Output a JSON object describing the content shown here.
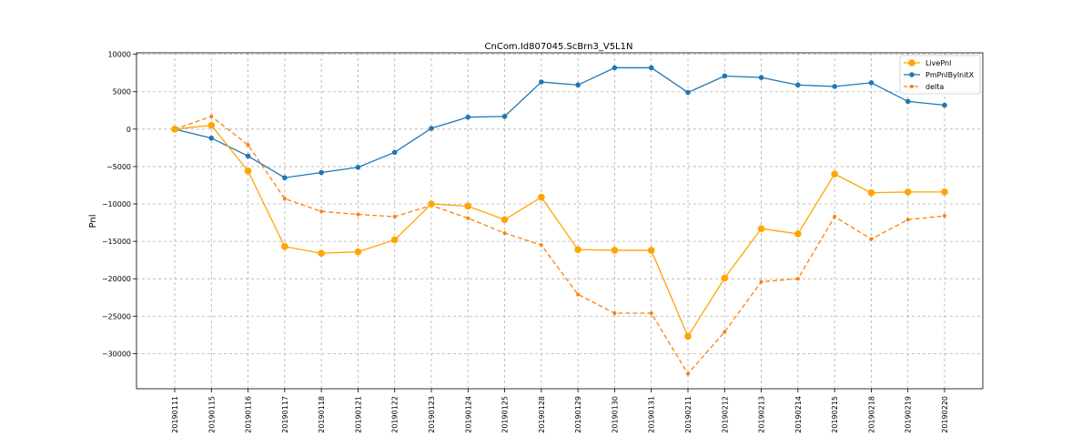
{
  "chart_data": {
    "type": "line",
    "title": "CnCom.Id807045.ScBrn3_V5L1N",
    "xlabel": "",
    "ylabel": "Pnl",
    "categories": [
      "20190111",
      "20190115",
      "20190116",
      "20190117",
      "20190118",
      "20190121",
      "20190122",
      "20190123",
      "20190124",
      "20190125",
      "20190128",
      "20190129",
      "20190130",
      "20190131",
      "20190211",
      "20190212",
      "20190213",
      "20190214",
      "20190215",
      "20190218",
      "20190219",
      "20190220"
    ],
    "ylim": [
      -34700,
      10200
    ],
    "yticks": [
      10000,
      5000,
      0,
      -5000,
      -10000,
      -15000,
      -20000,
      -25000,
      -30000
    ],
    "ytick_labels": [
      "10000",
      "5000",
      "0",
      "−5000",
      "−10000",
      "−15000",
      "−20000",
      "−25000",
      "−30000"
    ],
    "grid": true,
    "legend_position": "top-right",
    "series": [
      {
        "name": "LivePnl",
        "color": "#FFA500",
        "line_style": "solid",
        "marker_size": "large",
        "values": [
          0,
          500,
          -5600,
          -15700,
          -16600,
          -16400,
          -14800,
          -10000,
          -10300,
          -12100,
          -9100,
          -16100,
          -16200,
          -16200,
          -27700,
          -19900,
          -13300,
          -14000,
          -6000,
          -8500,
          -8400,
          -8400
        ]
      },
      {
        "name": "PmPnlByInitX",
        "color": "#1F77B4",
        "line_style": "solid",
        "marker_size": "medium",
        "values": [
          0,
          -1200,
          -3600,
          -6500,
          -5800,
          -5100,
          -3100,
          100,
          1600,
          1700,
          6300,
          5900,
          8200,
          8200,
          4900,
          7100,
          6900,
          5900,
          5700,
          6200,
          3700,
          3200
        ]
      },
      {
        "name": "delta",
        "color": "#FF7F0E",
        "line_style": "dashed",
        "marker_size": "small",
        "values": [
          0,
          1700,
          -2100,
          -9300,
          -11000,
          -11400,
          -11700,
          -10200,
          -11900,
          -13900,
          -15500,
          -22100,
          -24600,
          -24600,
          -32700,
          -27100,
          -20400,
          -20000,
          -11700,
          -14700,
          -12100,
          -11600
        ]
      }
    ]
  }
}
